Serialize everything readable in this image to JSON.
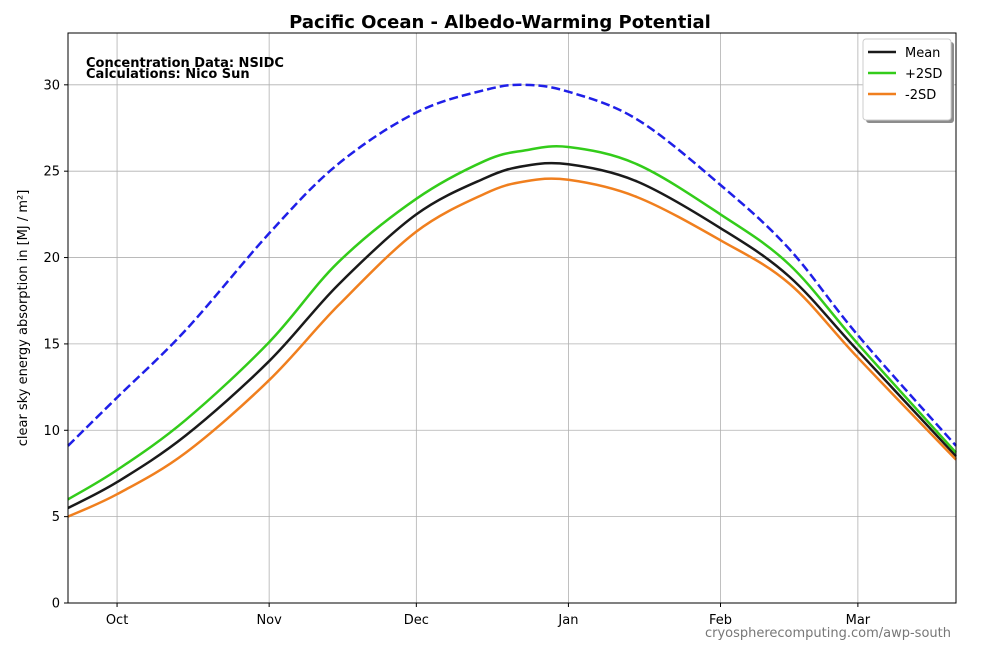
{
  "chart_data": {
    "type": "line",
    "title": "Pacific Ocean - Albedo-Warming Potential",
    "ylabel": "clear sky energy absorption in  [MJ / m²]",
    "xlabel": "",
    "ylim": [
      0,
      33
    ],
    "yticks": [
      0,
      5,
      10,
      15,
      20,
      25,
      30
    ],
    "xlim": [
      "09-21",
      "03-21"
    ],
    "xticks": [
      {
        "label": "Oct",
        "date": "10-01"
      },
      {
        "label": "Nov",
        "date": "11-01"
      },
      {
        "label": "Dec",
        "date": "12-01"
      },
      {
        "label": "Jan",
        "date": "01-01"
      },
      {
        "label": "Feb",
        "date": "02-01"
      },
      {
        "label": "Mar",
        "date": "03-01"
      }
    ],
    "grid": true,
    "legend_position": "top-right",
    "annotations": [
      "Concentration Data: NSIDC",
      "Calculations: Nico Sun"
    ],
    "footer": "cryospherecomputing.com/awp-south",
    "x": [
      "09-21",
      "10-01",
      "10-15",
      "11-01",
      "11-15",
      "12-01",
      "12-15",
      "12-23",
      "01-01",
      "01-15",
      "02-01",
      "02-15",
      "03-01",
      "03-21"
    ],
    "series": [
      {
        "name": "",
        "color": "#1f1fe8",
        "style": "dashed",
        "values": [
          9.1,
          11.9,
          15.8,
          21.4,
          25.4,
          28.4,
          29.7,
          30.0,
          29.6,
          28.0,
          24.2,
          20.5,
          15.5,
          9.1
        ]
      },
      {
        "name": "Mean",
        "color": "#1a1a1a",
        "style": "solid",
        "values": [
          5.5,
          7.0,
          9.7,
          14.0,
          18.4,
          22.5,
          24.6,
          25.3,
          25.4,
          24.4,
          21.7,
          18.9,
          14.6,
          8.5
        ]
      },
      {
        "name": "+2SD",
        "color": "#33cc1a",
        "style": "solid",
        "values": [
          6.0,
          7.7,
          10.6,
          15.1,
          19.7,
          23.4,
          25.6,
          26.2,
          26.4,
          25.4,
          22.5,
          19.6,
          15.0,
          8.7
        ]
      },
      {
        "name": "-2SD",
        "color": "#f07f1e",
        "style": "solid",
        "values": [
          5.0,
          6.3,
          8.7,
          12.9,
          17.2,
          21.5,
          23.7,
          24.4,
          24.5,
          23.5,
          21.0,
          18.5,
          14.2,
          8.3
        ]
      }
    ]
  }
}
